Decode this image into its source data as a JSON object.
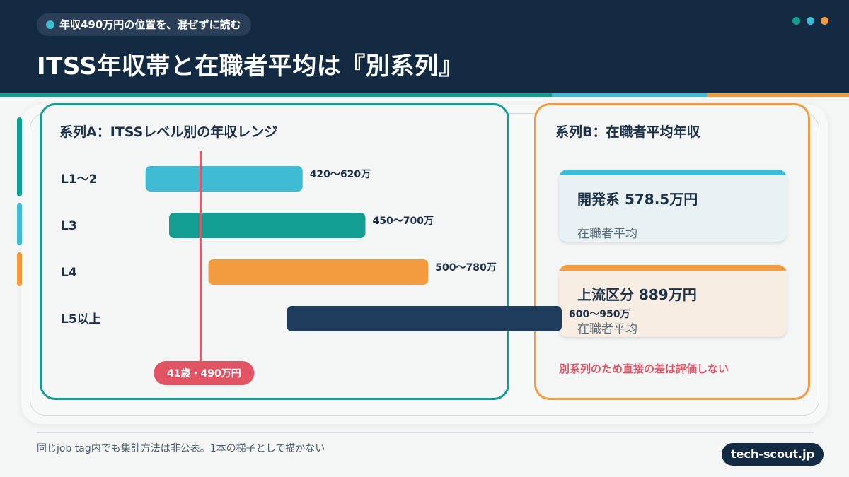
{
  "header": {
    "pill_text": "年収490万円の位置を、混ぜずに読む",
    "title": "ITSS年収帯と在職者平均は『別系列』",
    "dot_colors": [
      "#139e92",
      "#3fbcd4",
      "#f39b3f"
    ]
  },
  "colors": {
    "navy": "#132a43",
    "teal": "#139e92",
    "cyan": "#3fbcd4",
    "orange": "#f39b3f",
    "dark_blue": "#1e3d5c",
    "marker_red": "#e05464"
  },
  "panel_a": {
    "title": "系列A：ITSSレベル別の年収レンジ"
  },
  "panel_b": {
    "title": "系列B：在職者平均年収",
    "cards": [
      {
        "value": "開発系 578.5万円",
        "label": "在職者平均",
        "accent": "#3fbcd4"
      },
      {
        "value": "上流区分 889万円",
        "label": "在職者平均",
        "accent": "#f39b3f"
      }
    ],
    "note": "別系列のため直接の差は評価しない"
  },
  "chart_data": {
    "type": "bar",
    "orientation": "horizontal-range",
    "title": "系列A：ITSSレベル別の年収レンジ",
    "unit": "万",
    "categories": [
      "L1〜2",
      "L3",
      "L4",
      "L5以上"
    ],
    "ranges": [
      {
        "category": "L1〜2",
        "min": 420,
        "max": 620,
        "label": "420〜620万",
        "color": "#3fbcd4"
      },
      {
        "category": "L3",
        "min": 450,
        "max": 700,
        "label": "450〜700万",
        "color": "#139e92"
      },
      {
        "category": "L4",
        "min": 500,
        "max": 780,
        "label": "500〜780万",
        "color": "#f39b3f"
      },
      {
        "category": "L5以上",
        "min": 600,
        "max": 950,
        "label": "600〜950万",
        "color": "#1e3d5c"
      }
    ],
    "marker": {
      "value": 490,
      "label": "41歳・490万円",
      "color": "#e05464"
    },
    "xlim": [
      350,
      950
    ],
    "grid": false,
    "legend": "none"
  },
  "footer": {
    "footnote": "同じjob tag内でも集計方法は非公表。1本の梯子として描かない",
    "brand": "tech-scout.jp"
  }
}
